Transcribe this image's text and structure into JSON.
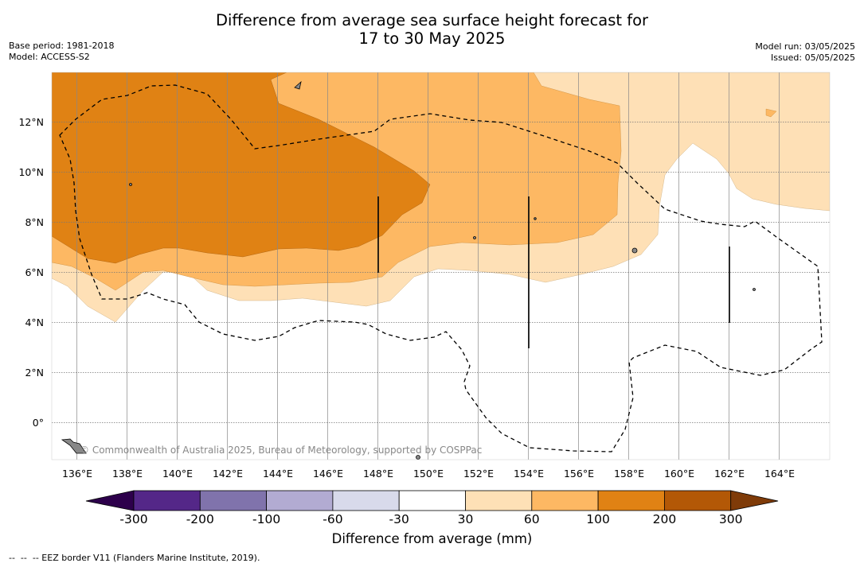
{
  "title_line1": "Difference from average sea surface height forecast for",
  "title_line2": "17 to 30 May 2025",
  "base_period": "Base period: 1981-2018",
  "model": "Model: ACCESS-S2",
  "model_run": "Model run: 03/05/2025",
  "issued": "Issued: 05/05/2025",
  "copyright": "© Commonwealth of Australia 2025, Bureau of Meteorology, supported by COSPPac",
  "footnote": "--  --  -- EEZ border V11 (Flanders Marine Institute, 2019).",
  "colorbar_label": "Difference from average (mm)",
  "map": {
    "lon_ticks": [
      "136°E",
      "138°E",
      "140°E",
      "142°E",
      "144°E",
      "146°E",
      "148°E",
      "150°E",
      "152°E",
      "154°E",
      "156°E",
      "158°E",
      "160°E",
      "162°E",
      "164°E"
    ],
    "lat_ticks": [
      "12°N",
      "10°N",
      "8°N",
      "6°N",
      "4°N",
      "2°N",
      "0°"
    ],
    "lon_range": [
      135,
      166
    ],
    "lat_range": [
      -1.5,
      14
    ]
  },
  "colorbar": {
    "ticks": [
      "-300",
      "-200",
      "-100",
      "-60",
      "-30",
      "30",
      "60",
      "100",
      "200",
      "300"
    ],
    "colors": [
      "#542788",
      "#8073ac",
      "#b2abd2",
      "#d8daeb",
      "#ffffff",
      "#fee0b6",
      "#fdb863",
      "#e08214",
      "#b35806"
    ],
    "under_color": "#2d004b",
    "over_color": "#7f3b08"
  }
}
